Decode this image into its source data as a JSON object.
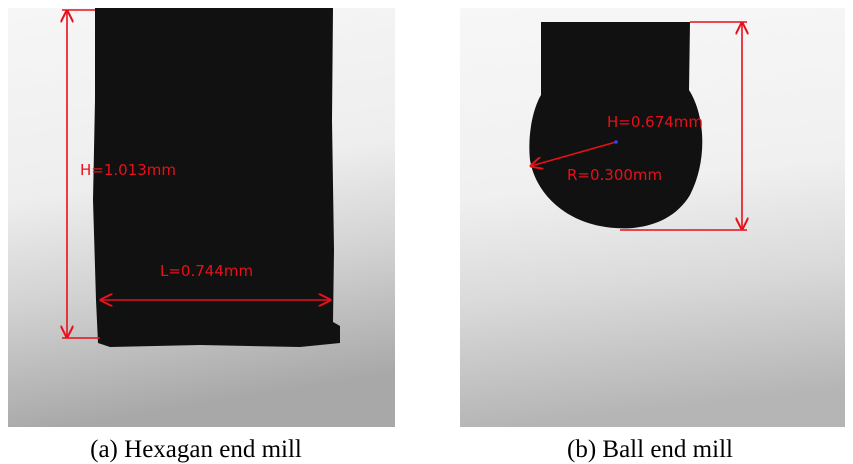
{
  "panels": [
    {
      "annotations": [
        "H=1.013mm",
        "L=0.744mm"
      ],
      "caption": "(a) Hexagan end mill"
    },
    {
      "annotations": [
        "H=0.674mm",
        "R=0.300mm"
      ],
      "caption": "(b) Ball end mill"
    }
  ]
}
